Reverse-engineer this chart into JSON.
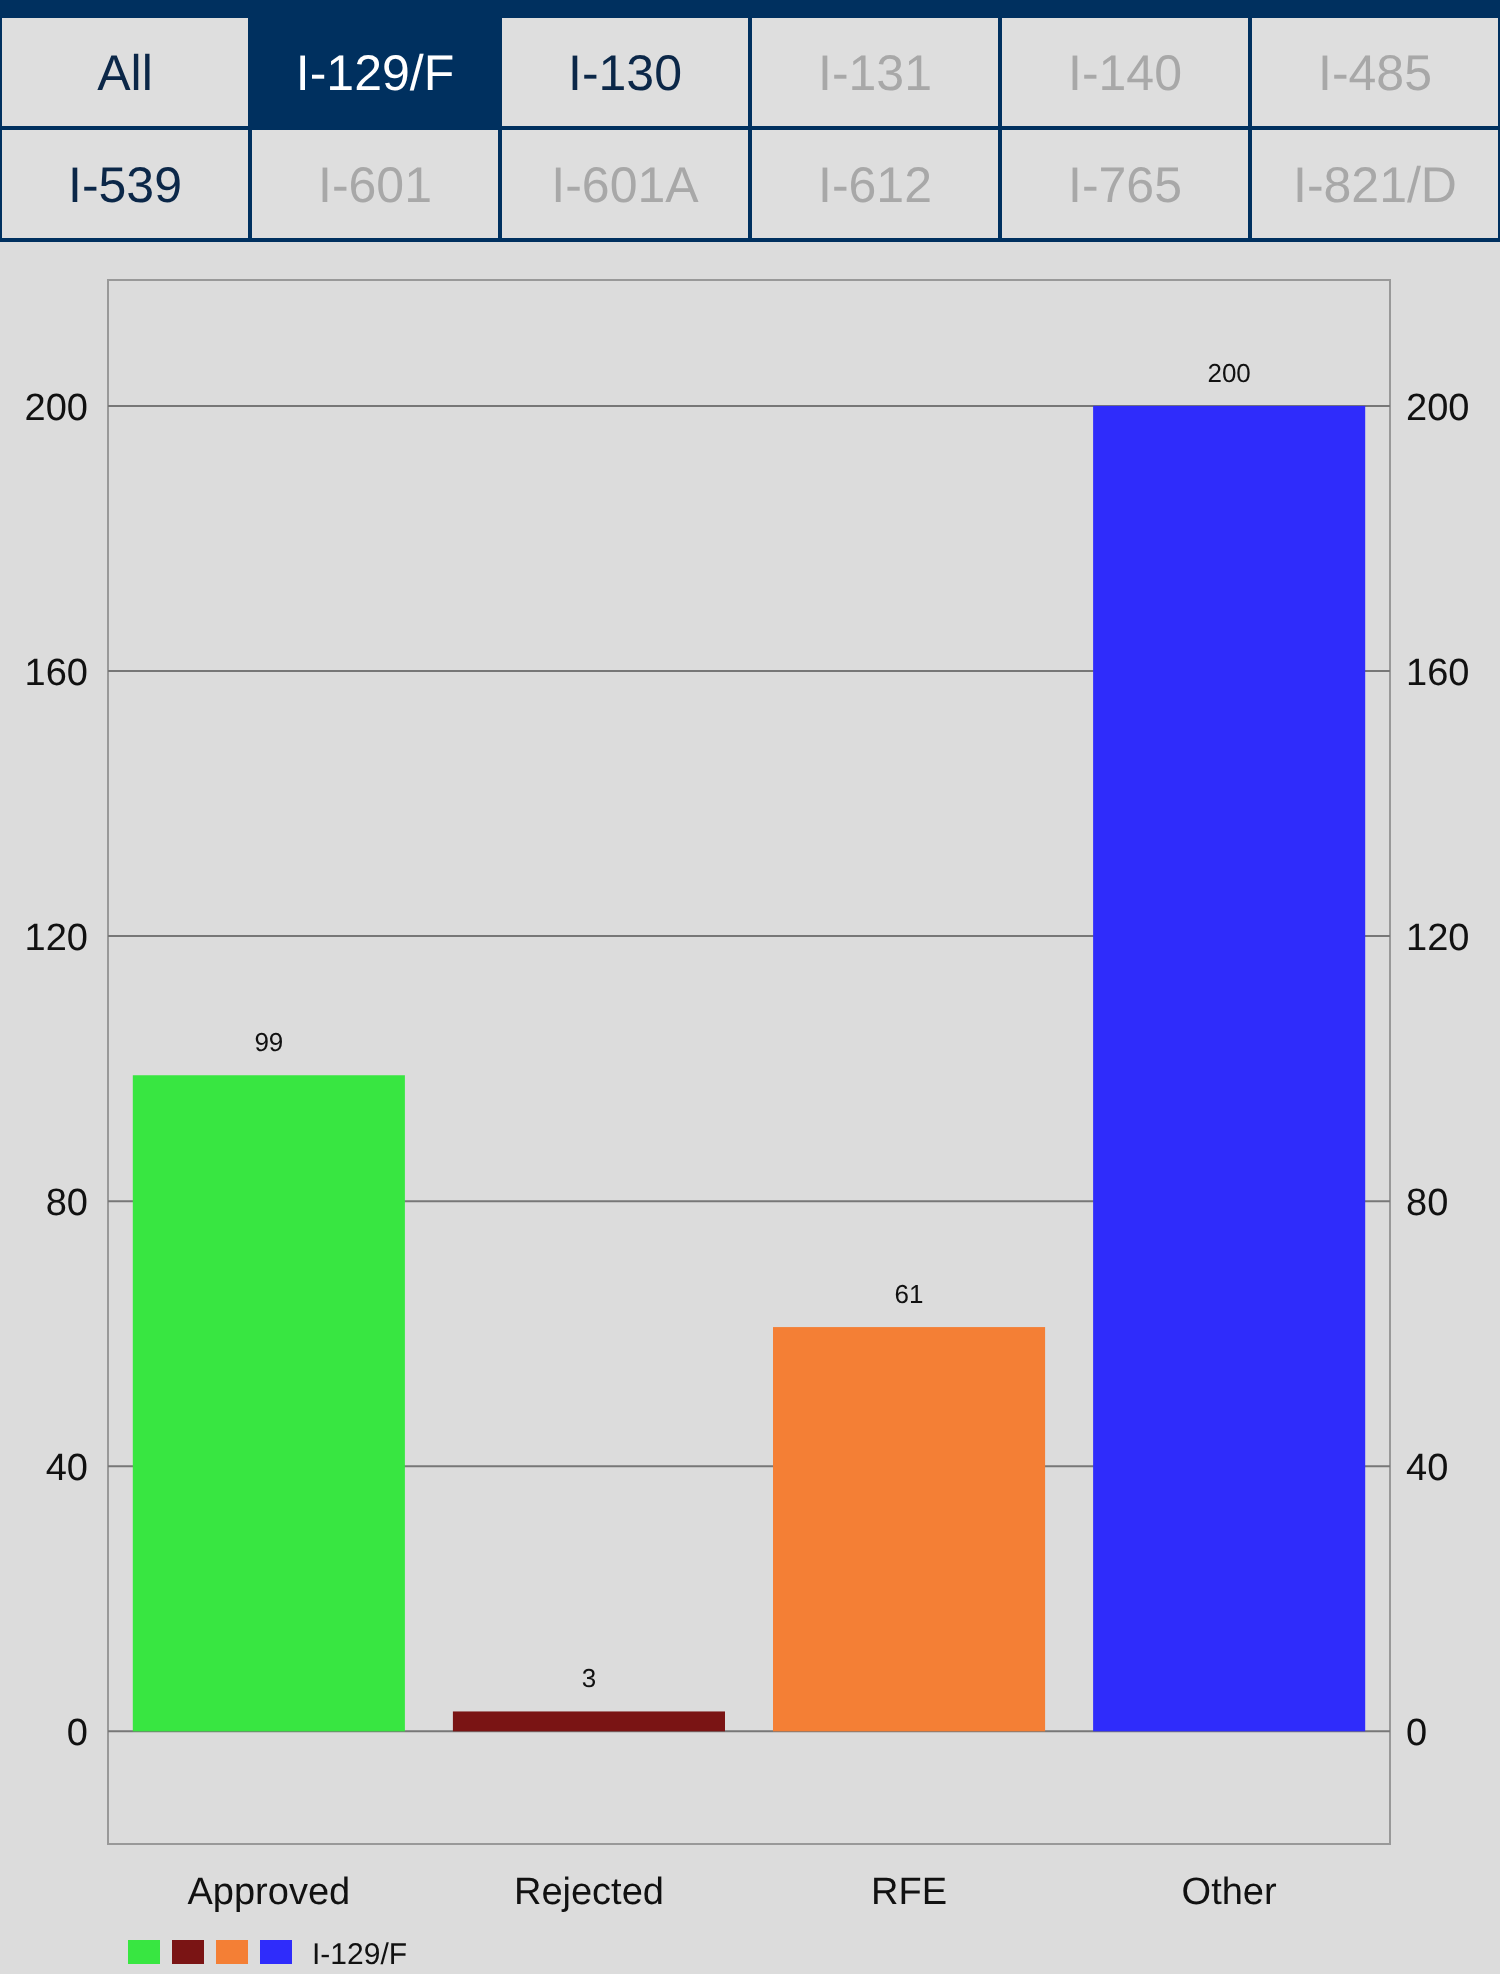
{
  "chart_data": {
    "type": "bar",
    "annotations": [
      "All",
      "I-129/F",
      "I-130",
      "I-131",
      "I-140",
      "I-485",
      "I-539",
      "I-601",
      "I-601A",
      "I-612",
      "I-765",
      "I-821/D"
    ],
    "categories": [
      "Approved",
      "Rejected",
      "RFE",
      "Other"
    ],
    "series": [
      {
        "name": "I-129/F",
        "colors": [
          "#38e641",
          "#7a1414",
          "#f47f35",
          "#2f2cfb"
        ],
        "values": [
          99,
          3,
          61,
          200
        ]
      }
    ],
    "data_labels": true,
    "ylim": [
      -17,
      219
    ],
    "yticks": [
      0,
      40,
      80,
      120,
      160,
      200
    ],
    "y2lim": [
      -17,
      219
    ],
    "y2ticks": [
      0,
      40,
      80,
      120,
      160,
      200
    ],
    "grid": "y",
    "legend": "bottom left"
  }
}
